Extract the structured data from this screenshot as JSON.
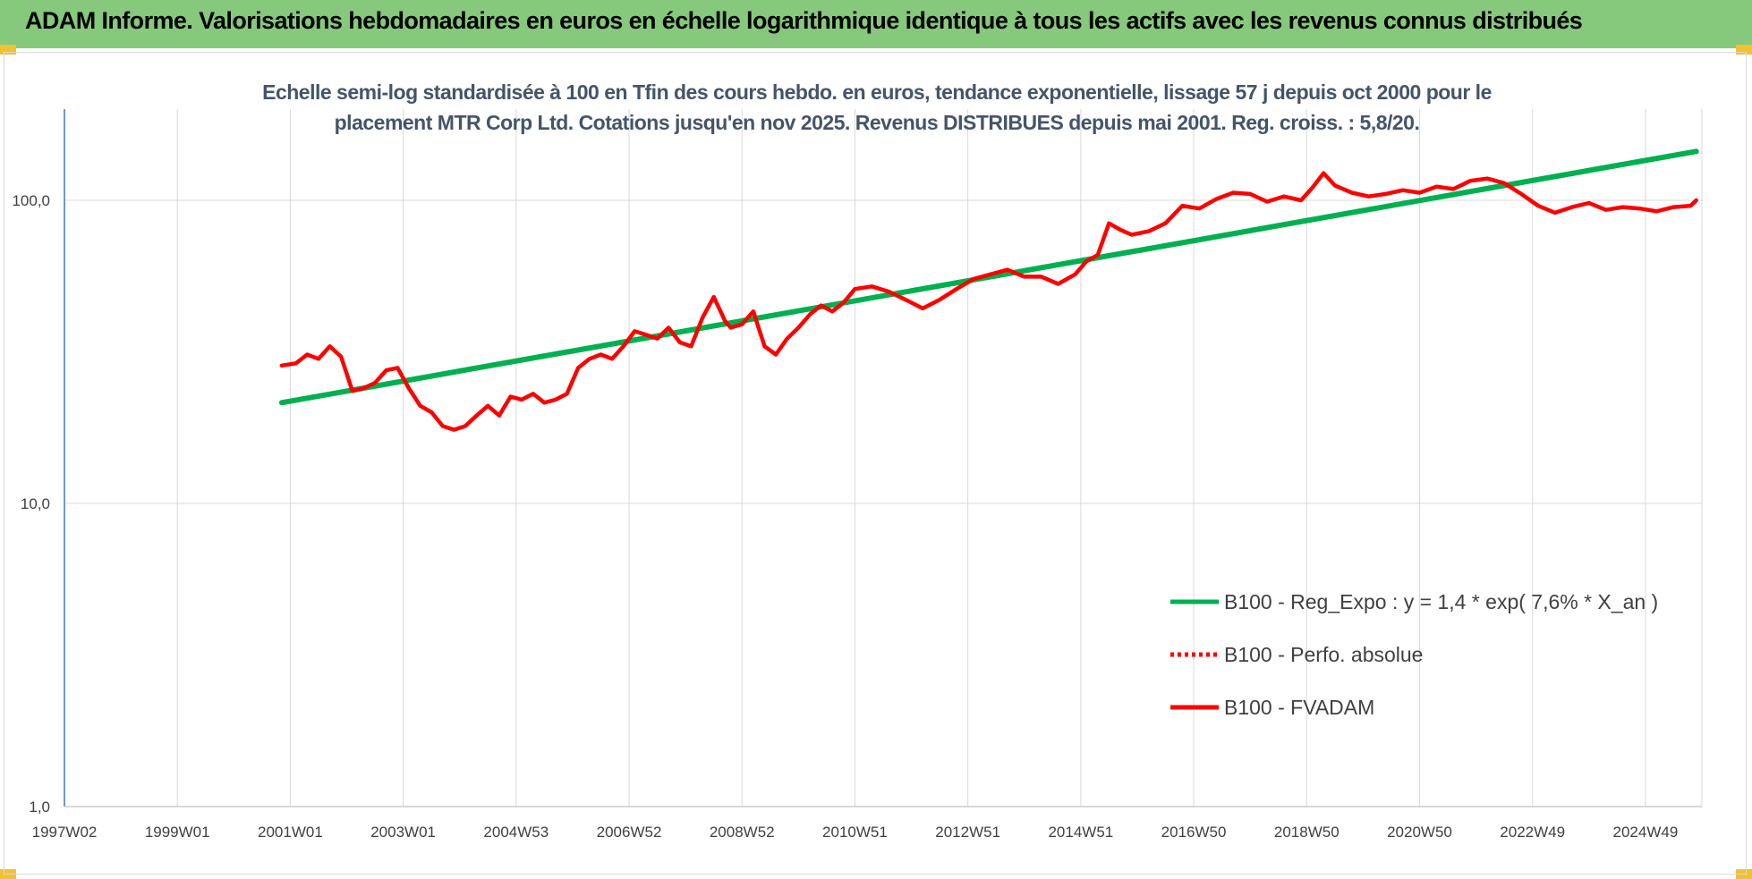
{
  "banner": {
    "title": "ADAM Informe. Valorisations hebdomadaires en euros en échelle logarithmique identique à tous les actifs avec les revenus connus distribués",
    "background": "#86c97c"
  },
  "chart_data": {
    "type": "line",
    "title": "Echelle semi-log standardisée à 100 en Tfin des cours hebdo. en euros, tendance exponentielle, lissage 57 j depuis oct 2000 pour le placement MTR Corp Ltd. Cotations jusqu'en nov 2025. Revenus DISTRIBUES depuis mai 2001. Reg. croiss. : 5,8/20.",
    "xlabel": "",
    "ylabel": "",
    "y_scale": "log",
    "ylim": [
      1,
      200
    ],
    "y_ticks": [
      "1,0",
      "10,0",
      "100,0"
    ],
    "x_ticks": [
      "1997W02",
      "1999W01",
      "2001W01",
      "2003W01",
      "2004W53",
      "2006W52",
      "2008W52",
      "2010W51",
      "2012W51",
      "2014W51",
      "2016W50",
      "2018W50",
      "2020W50",
      "2022W49",
      "2024W49"
    ],
    "grid": "vertical",
    "legend_position": "bottom-right",
    "series": [
      {
        "name": "B100 - Reg_Expo : y = 1,4 * exp( 7,6% *  X_an )",
        "color": "#00b050",
        "style": "solid",
        "x": [
          2000.85,
          2025.9
        ],
        "y": [
          21.5,
          145
        ]
      },
      {
        "name": "B100 - Perfo. absolue",
        "color": "#ff0000",
        "style": "dotted",
        "x": [],
        "y": []
      },
      {
        "name": "B100 - FVADAM",
        "color": "#ff0000",
        "style": "solid",
        "x": [
          2000.85,
          2001.1,
          2001.3,
          2001.5,
          2001.7,
          2001.9,
          2002.1,
          2002.3,
          2002.5,
          2002.7,
          2002.9,
          2003.1,
          2003.3,
          2003.5,
          2003.7,
          2003.9,
          2004.1,
          2004.3,
          2004.5,
          2004.7,
          2004.9,
          2005.1,
          2005.3,
          2005.5,
          2005.7,
          2005.9,
          2006.1,
          2006.3,
          2006.5,
          2006.7,
          2006.9,
          2007.1,
          2007.3,
          2007.5,
          2007.7,
          2007.9,
          2008.1,
          2008.3,
          2008.5,
          2008.7,
          2008.8,
          2009.0,
          2009.2,
          2009.4,
          2009.6,
          2009.8,
          2010.0,
          2010.2,
          2010.4,
          2010.6,
          2010.8,
          2011.0,
          2011.3,
          2011.6,
          2011.9,
          2012.2,
          2012.5,
          2012.8,
          2013.1,
          2013.4,
          2013.7,
          2014.0,
          2014.3,
          2014.6,
          2014.9,
          2015.1,
          2015.3,
          2015.5,
          2015.7,
          2015.9,
          2016.2,
          2016.5,
          2016.8,
          2017.1,
          2017.4,
          2017.7,
          2018.0,
          2018.3,
          2018.6,
          2018.9,
          2019.1,
          2019.3,
          2019.5,
          2019.8,
          2020.1,
          2020.4,
          2020.7,
          2021.0,
          2021.3,
          2021.6,
          2021.9,
          2022.2,
          2022.5,
          2022.8,
          2023.1,
          2023.4,
          2023.7,
          2024.0,
          2024.3,
          2024.6,
          2024.9,
          2025.2,
          2025.5,
          2025.8,
          2025.9
        ],
        "y": [
          28.5,
          29,
          31,
          30,
          33,
          30.5,
          23.5,
          24,
          25,
          27.5,
          28,
          24,
          21,
          20,
          18,
          17.5,
          18,
          19.5,
          21,
          19.5,
          22.5,
          22,
          23,
          21.5,
          22,
          23,
          28,
          30,
          31,
          30,
          33,
          37,
          36,
          35,
          38,
          34,
          33,
          41,
          48,
          40,
          38,
          39,
          43,
          33,
          31,
          35,
          38,
          42,
          45,
          43,
          46,
          51,
          52,
          50,
          47,
          44,
          47,
          51,
          55,
          57,
          59,
          56,
          56,
          53,
          57,
          63,
          66,
          84,
          80,
          77,
          79,
          84,
          96,
          94,
          101,
          106,
          105,
          99,
          103,
          100,
          110,
          123,
          112,
          106,
          103,
          105,
          108,
          106,
          111,
          109,
          116,
          118,
          114,
          105,
          96,
          91,
          95,
          98,
          93,
          95,
          94,
          92,
          95,
          96,
          100
        ]
      }
    ]
  }
}
